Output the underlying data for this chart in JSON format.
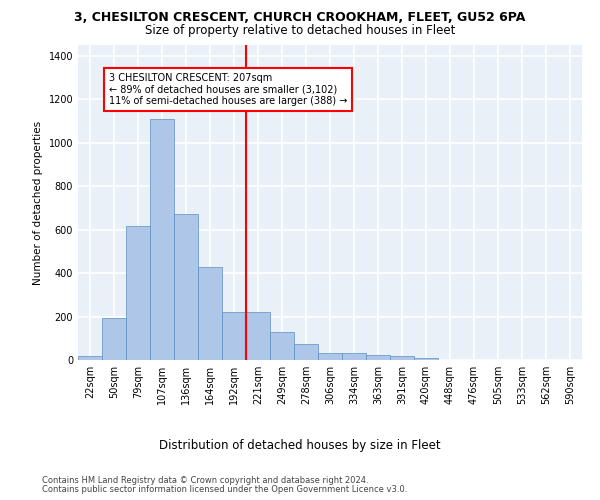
{
  "title1": "3, CHESILTON CRESCENT, CHURCH CROOKHAM, FLEET, GU52 6PA",
  "title2": "Size of property relative to detached houses in Fleet",
  "xlabel": "Distribution of detached houses by size in Fleet",
  "ylabel": "Number of detached properties",
  "bar_labels": [
    "22sqm",
    "50sqm",
    "79sqm",
    "107sqm",
    "136sqm",
    "164sqm",
    "192sqm",
    "221sqm",
    "249sqm",
    "278sqm",
    "306sqm",
    "334sqm",
    "363sqm",
    "391sqm",
    "420sqm",
    "448sqm",
    "476sqm",
    "505sqm",
    "533sqm",
    "562sqm",
    "590sqm"
  ],
  "bar_values": [
    20,
    195,
    615,
    1110,
    670,
    430,
    220,
    220,
    130,
    75,
    33,
    33,
    25,
    18,
    10,
    0,
    0,
    0,
    0,
    0,
    0
  ],
  "bar_color": "#aec6e8",
  "bar_edge_color": "#5a8fc2",
  "annotation_line1": "3 CHESILTON CRESCENT: 207sqm",
  "annotation_line2": "← 89% of detached houses are smaller (3,102)",
  "annotation_line3": "11% of semi-detached houses are larger (388) →",
  "ylim": [
    0,
    1450
  ],
  "yticks": [
    0,
    200,
    400,
    600,
    800,
    1000,
    1200,
    1400
  ],
  "background_color": "#eaf0f8",
  "grid_color": "#ffffff",
  "footer1": "Contains HM Land Registry data © Crown copyright and database right 2024.",
  "footer2": "Contains public sector information licensed under the Open Government Licence v3.0."
}
